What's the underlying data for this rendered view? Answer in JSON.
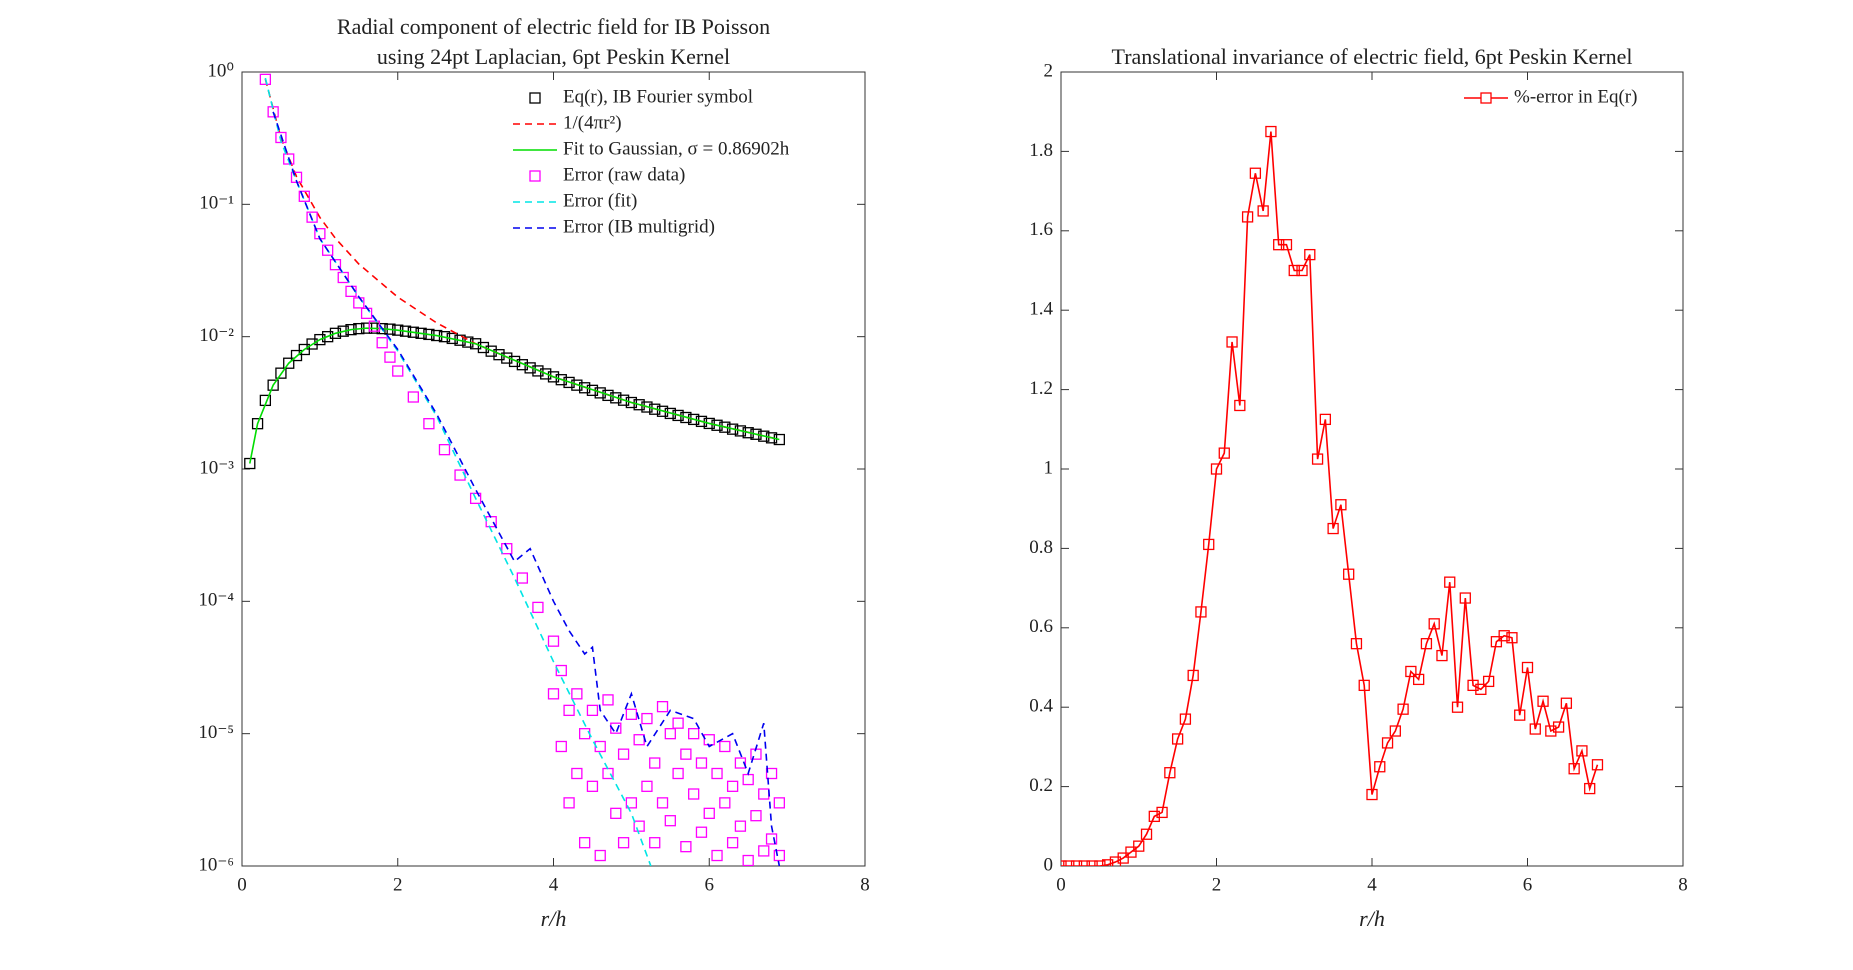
{
  "chart_data": [
    {
      "type": "line",
      "title": [
        "Radial component of electric field for IB Poisson",
        "using 24pt Laplacian, 6pt Peskin Kernel"
      ],
      "xlabel": "r/h",
      "xlim": [
        0,
        8
      ],
      "xticks": [
        0,
        2,
        4,
        6,
        8
      ],
      "yscale": "log",
      "ylim": [
        1e-06,
        1
      ],
      "yticks": [
        {
          "value": 1e-06,
          "label": "10⁻⁶"
        },
        {
          "value": 1e-05,
          "label": "10⁻⁵"
        },
        {
          "value": 0.0001,
          "label": "10⁻⁴"
        },
        {
          "value": 0.001,
          "label": "10⁻³"
        },
        {
          "value": 0.01,
          "label": "10⁻²"
        },
        {
          "value": 0.1,
          "label": "10⁻¹"
        },
        {
          "value": 1,
          "label": "10⁰"
        }
      ],
      "legend": "upper right",
      "series": [
        {
          "name": "Eq(r), IB Fourier symbol",
          "color": "#000000",
          "marker": "square",
          "line": "none",
          "x": [
            0.1,
            0.2,
            0.3,
            0.4,
            0.5,
            0.6,
            0.7,
            0.8,
            0.9,
            1.0,
            1.1,
            1.2,
            1.3,
            1.4,
            1.5,
            1.6,
            1.7,
            1.8,
            1.9,
            2.0,
            2.1,
            2.2,
            2.3,
            2.4,
            2.5,
            2.6,
            2.7,
            2.8,
            2.9,
            3.0,
            3.1,
            3.2,
            3.3,
            3.4,
            3.5,
            3.6,
            3.7,
            3.8,
            3.9,
            4.0,
            4.1,
            4.2,
            4.3,
            4.4,
            4.5,
            4.6,
            4.7,
            4.8,
            4.9,
            5.0,
            5.1,
            5.2,
            5.3,
            5.4,
            5.5,
            5.6,
            5.7,
            5.8,
            5.9,
            6.0,
            6.1,
            6.2,
            6.3,
            6.4,
            6.5,
            6.6,
            6.7,
            6.8,
            6.9
          ],
          "values": [
            0.0011,
            0.0022,
            0.0033,
            0.0043,
            0.0053,
            0.0063,
            0.0072,
            0.008,
            0.0088,
            0.0095,
            0.01,
            0.0106,
            0.011,
            0.0113,
            0.0115,
            0.0116,
            0.0116,
            0.0115,
            0.0114,
            0.0112,
            0.011,
            0.0108,
            0.0106,
            0.0104,
            0.0102,
            0.01,
            0.0097,
            0.0094,
            0.0091,
            0.00884,
            0.00828,
            0.00777,
            0.00731,
            0.00689,
            0.0065,
            0.00614,
            0.00581,
            0.00551,
            0.00523,
            0.00497,
            0.00473,
            0.00451,
            0.0043,
            0.00411,
            0.00393,
            0.00376,
            0.0036,
            0.00345,
            0.00331,
            0.00318,
            0.00306,
            0.00294,
            0.00283,
            0.00273,
            0.00263,
            0.00254,
            0.00245,
            0.00237,
            0.00229,
            0.00221,
            0.00214,
            0.00207,
            0.002,
            0.00194,
            0.00188,
            0.00183,
            0.00177,
            0.00172,
            0.00167
          ]
        },
        {
          "name": "1/(4πr²)",
          "color": "#ff0000",
          "marker": "none",
          "line": "dashed",
          "x": [
            0.3,
            0.5,
            0.7,
            1,
            1.2,
            1.5,
            2,
            2.5,
            3,
            4,
            5,
            6,
            6.9
          ],
          "values": [
            0.884,
            0.318,
            0.162,
            0.0796,
            0.0553,
            0.0354,
            0.0199,
            0.0127,
            0.00884,
            0.00497,
            0.00318,
            0.00221,
            0.00167
          ]
        },
        {
          "name": "Fit to Gaussian, σ = 0.86902h",
          "color": "#00dd00",
          "marker": "none",
          "line": "solid",
          "x": [
            0.1,
            0.2,
            0.4,
            0.6,
            0.8,
            1,
            1.2,
            1.4,
            1.6,
            1.8,
            2,
            2.5,
            3,
            4,
            5,
            6,
            6.9
          ],
          "values": [
            0.0011,
            0.0022,
            0.0043,
            0.0063,
            0.008,
            0.0095,
            0.0106,
            0.0113,
            0.0116,
            0.0115,
            0.0112,
            0.0102,
            0.00884,
            0.00497,
            0.00318,
            0.00221,
            0.00167
          ]
        },
        {
          "name": "Error (raw data)",
          "color": "#ff00ff",
          "marker": "square",
          "line": "none",
          "x": [
            0.3,
            0.4,
            0.5,
            0.6,
            0.7,
            0.8,
            0.9,
            1.0,
            1.1,
            1.2,
            1.3,
            1.4,
            1.5,
            1.6,
            1.7,
            1.8,
            1.9,
            2.0,
            2.2,
            2.4,
            2.6,
            2.8,
            3.0,
            3.2,
            3.4,
            3.6,
            3.8,
            4.0,
            4.0,
            4.1,
            4.1,
            4.2,
            4.2,
            4.3,
            4.3,
            4.4,
            4.4,
            4.5,
            4.5,
            4.6,
            4.6,
            4.7,
            4.7,
            4.8,
            4.8,
            4.9,
            4.9,
            5.0,
            5.0,
            5.1,
            5.1,
            5.2,
            5.2,
            5.3,
            5.3,
            5.4,
            5.4,
            5.5,
            5.5,
            5.6,
            5.6,
            5.7,
            5.7,
            5.8,
            5.8,
            5.9,
            5.9,
            6.0,
            6.0,
            6.1,
            6.1,
            6.2,
            6.2,
            6.3,
            6.3,
            6.4,
            6.4,
            6.5,
            6.5,
            6.6,
            6.6,
            6.7,
            6.7,
            6.8,
            6.8,
            6.9,
            6.9
          ],
          "values": [
            0.88,
            0.5,
            0.32,
            0.22,
            0.16,
            0.115,
            0.08,
            0.06,
            0.045,
            0.035,
            0.028,
            0.022,
            0.018,
            0.015,
            0.012,
            0.009,
            0.007,
            0.0055,
            0.0035,
            0.0022,
            0.0014,
            0.0009,
            0.0006,
            0.0004,
            0.00025,
            0.00015,
            9e-05,
            5e-05,
            2e-05,
            3e-05,
            8e-06,
            1.5e-05,
            3e-06,
            2e-05,
            5e-06,
            1e-05,
            1.5e-06,
            1.5e-05,
            4e-06,
            8e-06,
            1.2e-06,
            1.8e-05,
            5e-06,
            1.1e-05,
            2.5e-06,
            7e-06,
            1.5e-06,
            1.4e-05,
            3e-06,
            9e-06,
            2e-06,
            1.3e-05,
            4e-06,
            6e-06,
            1.5e-06,
            1.6e-05,
            3e-06,
            1e-05,
            2.2e-06,
            1.2e-05,
            5e-06,
            7e-06,
            1.4e-06,
            1e-05,
            3.5e-06,
            6e-06,
            1.8e-06,
            9e-06,
            2.5e-06,
            5e-06,
            1.2e-06,
            8e-06,
            3e-06,
            4e-06,
            1.5e-06,
            6e-06,
            2e-06,
            4.5e-06,
            1.1e-06,
            7e-06,
            2.4e-06,
            3.5e-06,
            1.3e-06,
            5e-06,
            1.6e-06,
            3e-06,
            1.2e-06
          ]
        },
        {
          "name": "Error (fit)",
          "color": "#00e5e5",
          "marker": "none",
          "line": "dashed",
          "x": [
            0.3,
            0.5,
            0.7,
            1.0,
            1.5,
            2,
            2.5,
            3,
            3.5,
            4,
            4.5,
            5,
            5.25
          ],
          "values": [
            0.9,
            0.3,
            0.15,
            0.055,
            0.02,
            0.0078,
            0.0025,
            0.0006,
            0.00015,
            3.5e-05,
            9e-06,
            2.5e-06,
            1e-06
          ]
        },
        {
          "name": "Error (IB multigrid)",
          "color": "#0000ee",
          "marker": "none",
          "line": "dashed",
          "x": [
            0.4,
            0.7,
            1,
            1.5,
            2,
            2.5,
            3,
            3.5,
            3.7,
            4.0,
            4.2,
            4.4,
            4.5,
            4.6,
            4.8,
            5.0,
            5.2,
            5.5,
            5.8,
            6.0,
            6.3,
            6.5,
            6.7,
            6.8,
            6.9
          ],
          "values": [
            0.5,
            0.15,
            0.055,
            0.02,
            0.008,
            0.0026,
            0.0007,
            0.0002,
            0.00025,
            0.0001,
            6e-05,
            4e-05,
            4.5e-05,
            1.5e-05,
            1e-05,
            2e-05,
            8e-06,
            1.5e-05,
            1.3e-05,
            8e-06,
            1e-05,
            5e-06,
            1.2e-05,
            2e-06,
            1e-06
          ]
        }
      ]
    },
    {
      "type": "line",
      "title": [
        "Translational invariance of electric field, 6pt Peskin Kernel"
      ],
      "xlabel": "r/h",
      "xlim": [
        0,
        8
      ],
      "xticks": [
        0,
        2,
        4,
        6,
        8
      ],
      "yscale": "linear",
      "ylim": [
        0,
        2
      ],
      "yticks": [
        0,
        0.2,
        0.4,
        0.6,
        0.8,
        1,
        1.2,
        1.4,
        1.6,
        1.8,
        2
      ],
      "legend": "upper right",
      "series": [
        {
          "name": "%-error in Eq(r)",
          "color": "#ff0000",
          "marker": "square",
          "line": "solid",
          "x": [
            0,
            0.1,
            0.2,
            0.3,
            0.4,
            0.5,
            0.6,
            0.7,
            0.8,
            0.9,
            1.0,
            1.1,
            1.2,
            1.3,
            1.4,
            1.5,
            1.6,
            1.7,
            1.8,
            1.9,
            2.0,
            2.1,
            2.2,
            2.3,
            2.4,
            2.5,
            2.6,
            2.7,
            2.8,
            2.9,
            3.0,
            3.1,
            3.2,
            3.3,
            3.4,
            3.5,
            3.6,
            3.7,
            3.8,
            3.9,
            4.0,
            4.1,
            4.2,
            4.3,
            4.4,
            4.5,
            4.6,
            4.7,
            4.8,
            4.9,
            5.0,
            5.1,
            5.2,
            5.3,
            5.4,
            5.5,
            5.6,
            5.7,
            5.8,
            5.9,
            6.0,
            6.1,
            6.2,
            6.3,
            6.4,
            6.5,
            6.6,
            6.7,
            6.8,
            6.9
          ],
          "values": [
            0,
            0,
            0,
            0,
            0,
            0,
            0.003,
            0.01,
            0.02,
            0.035,
            0.05,
            0.08,
            0.125,
            0.135,
            0.235,
            0.32,
            0.37,
            0.48,
            0.64,
            0.81,
            1.0,
            1.04,
            1.32,
            1.16,
            1.635,
            1.745,
            1.65,
            1.85,
            1.565,
            1.565,
            1.5,
            1.5,
            1.54,
            1.025,
            1.125,
            0.85,
            0.91,
            0.735,
            0.56,
            0.455,
            0.18,
            0.25,
            0.31,
            0.34,
            0.395,
            0.49,
            0.47,
            0.56,
            0.61,
            0.53,
            0.715,
            0.4,
            0.675,
            0.455,
            0.445,
            0.465,
            0.565,
            0.58,
            0.575,
            0.38,
            0.5,
            0.345,
            0.415,
            0.34,
            0.35,
            0.41,
            0.245,
            0.29,
            0.195,
            0.255
          ]
        }
      ]
    }
  ]
}
